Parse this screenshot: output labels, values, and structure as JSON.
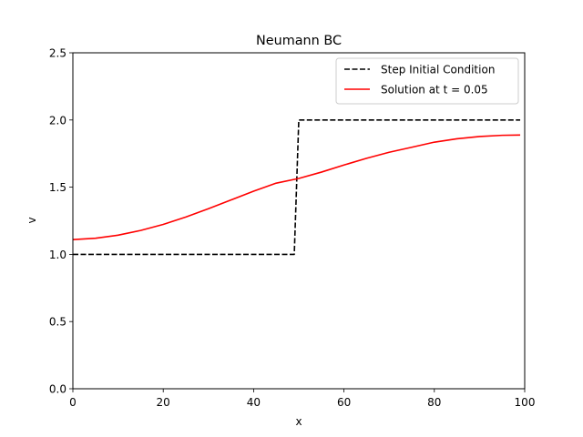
{
  "chart_data": {
    "type": "line",
    "title": "Neumann BC",
    "xlabel": "x",
    "ylabel": "v",
    "xlim": [
      0,
      100
    ],
    "ylim": [
      0,
      2.5
    ],
    "x_ticks": [
      0,
      20,
      40,
      60,
      80,
      100
    ],
    "y_ticks": [
      0.0,
      0.5,
      1.0,
      1.5,
      2.0,
      2.5
    ],
    "x_tick_labels": [
      "0",
      "20",
      "40",
      "60",
      "80",
      "100"
    ],
    "y_tick_labels": [
      "0.0",
      "0.5",
      "1.0",
      "1.5",
      "2.0",
      "2.5"
    ],
    "grid": false,
    "legend_position": "top-right",
    "series": [
      {
        "name": "Step Initial Condition",
        "style": "dashed",
        "color": "#000000",
        "x": [
          0,
          49,
          50,
          99
        ],
        "y": [
          1.0,
          1.0,
          2.0,
          2.0
        ]
      },
      {
        "name": "Solution at t = 0.05",
        "style": "solid",
        "color": "#ff0000",
        "x": [
          0,
          5,
          10,
          15,
          20,
          25,
          30,
          35,
          40,
          45,
          50,
          55,
          60,
          65,
          70,
          75,
          80,
          85,
          90,
          95,
          99
        ],
        "y": [
          1.11,
          1.12,
          1.143,
          1.178,
          1.223,
          1.278,
          1.34,
          1.405,
          1.47,
          1.53,
          1.565,
          1.612,
          1.665,
          1.715,
          1.76,
          1.797,
          1.835,
          1.86,
          1.877,
          1.886,
          1.888
        ]
      }
    ]
  }
}
